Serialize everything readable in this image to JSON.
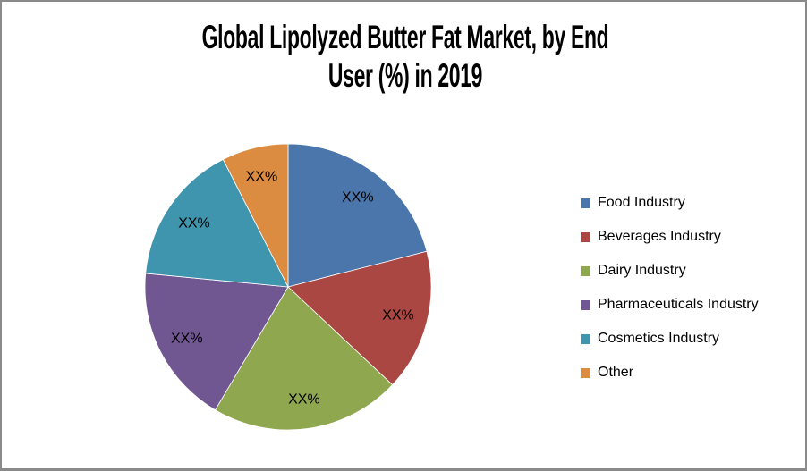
{
  "chart": {
    "title_lines": [
      "Global Lipolyzed Butter Fat Market, by End",
      "User (%) in 2019"
    ],
    "border_color": "#8A8A8A",
    "background_color": "#FFFFFF"
  },
  "chart_data": {
    "type": "pie",
    "title": "Global Lipolyzed Butter Fat Market, by End User (%) in 2019",
    "legend_position": "right",
    "start_angle_deg": 0,
    "direction": "clockwise",
    "data_label_text": "XX%",
    "note": "All slice data labels show the placeholder XX%; value_pct are shares estimated from slice geometry",
    "slices": [
      {
        "label": "Food Industry",
        "display_label": "XX%",
        "value_pct": 21.0,
        "color": "#4B76AB"
      },
      {
        "label": "Beverages Industry",
        "display_label": "XX%",
        "value_pct": 16.0,
        "color": "#AA4743"
      },
      {
        "label": "Dairy Industry",
        "display_label": "XX%",
        "value_pct": 21.5,
        "color": "#8FA74F"
      },
      {
        "label": "Pharmaceuticals Industry",
        "display_label": "XX%",
        "value_pct": 18.0,
        "color": "#715792"
      },
      {
        "label": "Cosmetics Industry",
        "display_label": "XX%",
        "value_pct": 16.0,
        "color": "#4095AE"
      },
      {
        "label": "Other",
        "display_label": "XX%",
        "value_pct": 7.5,
        "color": "#DC8C40"
      }
    ]
  }
}
